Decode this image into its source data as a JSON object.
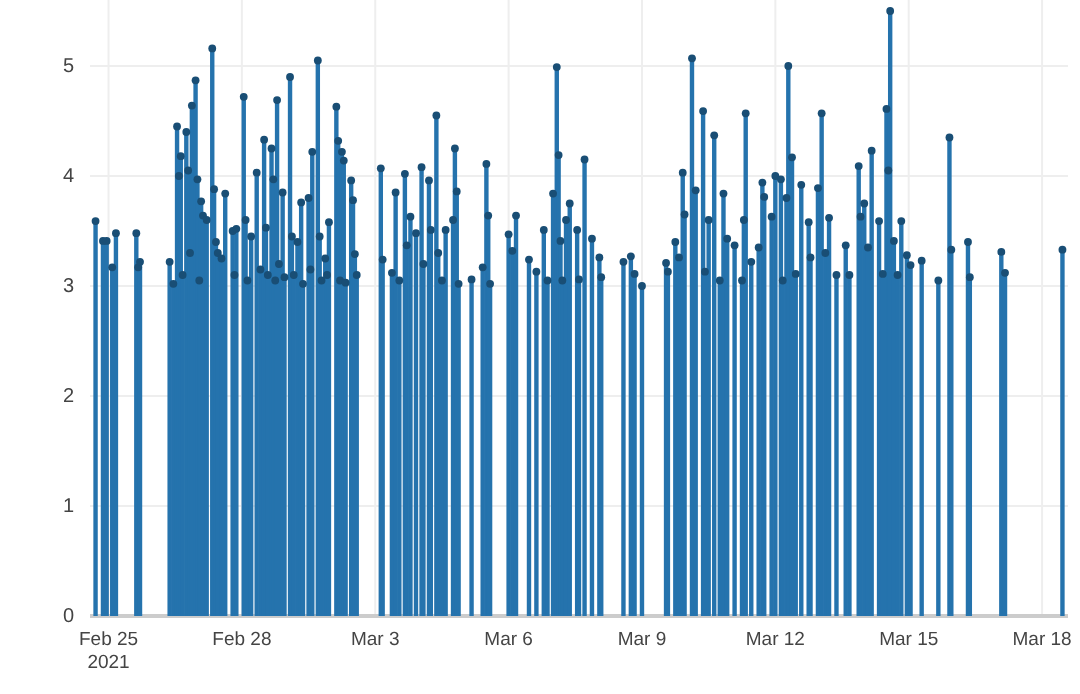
{
  "chart_data": {
    "type": "lollipop",
    "marker": "circle",
    "grid": true,
    "xlim": [
      "2021-02-24T14:00",
      "2021-03-18T14:00"
    ],
    "xticks": [
      {
        "value": "2021-02-25",
        "label": "Feb 25\n2021"
      },
      {
        "value": "2021-02-28",
        "label": "Feb 28"
      },
      {
        "value": "2021-03-03",
        "label": "Mar 3"
      },
      {
        "value": "2021-03-06",
        "label": "Mar 6"
      },
      {
        "value": "2021-03-09",
        "label": "Mar 9"
      },
      {
        "value": "2021-03-12",
        "label": "Mar 12"
      },
      {
        "value": "2021-03-15",
        "label": "Mar 15"
      },
      {
        "value": "2021-03-18",
        "label": "Mar 18"
      }
    ],
    "ylim": [
      0,
      5.6
    ],
    "yticks": [
      0,
      1,
      2,
      3,
      4,
      5
    ],
    "series": [
      {
        "color": "#194e75",
        "x": [
          "2021-02-24T17:00",
          "2021-02-24T21:00",
          "2021-02-24T23:00",
          "2021-02-25T02:00",
          "2021-02-25T04:00",
          "2021-02-25T15:00",
          "2021-02-25T16:00",
          "2021-02-25T17:00",
          "2021-02-26T09:00",
          "2021-02-26T11:00",
          "2021-02-26T13:00",
          "2021-02-26T14:00",
          "2021-02-26T15:00",
          "2021-02-26T16:00",
          "2021-02-26T18:00",
          "2021-02-26T19:00",
          "2021-02-26T20:00",
          "2021-02-26T21:00",
          "2021-02-26T23:00",
          "2021-02-27T00:00",
          "2021-02-27T01:00",
          "2021-02-27T02:00",
          "2021-02-27T03:00",
          "2021-02-27T05:00",
          "2021-02-27T08:00",
          "2021-02-27T09:00",
          "2021-02-27T10:00",
          "2021-02-27T11:00",
          "2021-02-27T13:00",
          "2021-02-27T15:00",
          "2021-02-27T19:00",
          "2021-02-27T20:00",
          "2021-02-27T21:00",
          "2021-02-28T01:00",
          "2021-02-28T02:00",
          "2021-02-28T03:00",
          "2021-02-28T05:00",
          "2021-02-28T08:00",
          "2021-02-28T10:00",
          "2021-02-28T12:00",
          "2021-02-28T13:00",
          "2021-02-28T14:00",
          "2021-02-28T16:00",
          "2021-02-28T17:00",
          "2021-02-28T18:00",
          "2021-02-28T19:00",
          "2021-02-28T20:00",
          "2021-02-28T22:00",
          "2021-02-28T23:00",
          "2021-03-01T02:00",
          "2021-03-01T03:00",
          "2021-03-01T04:00",
          "2021-03-01T06:00",
          "2021-03-01T08:00",
          "2021-03-01T09:00",
          "2021-03-01T12:00",
          "2021-03-01T13:00",
          "2021-03-01T14:00",
          "2021-03-01T17:00",
          "2021-03-01T18:00",
          "2021-03-01T19:00",
          "2021-03-01T21:00",
          "2021-03-01T22:00",
          "2021-03-01T23:00",
          "2021-03-02T03:00",
          "2021-03-02T04:00",
          "2021-03-02T05:00",
          "2021-03-02T06:00",
          "2021-03-02T07:00",
          "2021-03-02T08:00",
          "2021-03-02T11:00",
          "2021-03-02T12:00",
          "2021-03-02T13:00",
          "2021-03-02T14:00",
          "2021-03-03T03:00",
          "2021-03-03T04:00",
          "2021-03-03T09:00",
          "2021-03-03T11:00",
          "2021-03-03T13:00",
          "2021-03-03T16:00",
          "2021-03-03T17:00",
          "2021-03-03T19:00",
          "2021-03-03T22:00",
          "2021-03-04T01:00",
          "2021-03-04T02:00",
          "2021-03-04T05:00",
          "2021-03-04T06:00",
          "2021-03-04T09:00",
          "2021-03-04T10:00",
          "2021-03-04T12:00",
          "2021-03-04T14:00",
          "2021-03-04T18:00",
          "2021-03-04T19:00",
          "2021-03-04T20:00",
          "2021-03-04T21:00",
          "2021-03-05T04:00",
          "2021-03-05T10:00",
          "2021-03-05T12:00",
          "2021-03-05T13:00",
          "2021-03-05T14:00",
          "2021-03-06T00:00",
          "2021-03-06T02:00",
          "2021-03-06T04:00",
          "2021-03-06T11:00",
          "2021-03-06T15:00",
          "2021-03-06T19:00",
          "2021-03-06T21:00",
          "2021-03-07T00:00",
          "2021-03-07T02:00",
          "2021-03-07T03:00",
          "2021-03-07T04:00",
          "2021-03-07T05:00",
          "2021-03-07T07:00",
          "2021-03-07T09:00",
          "2021-03-07T13:00",
          "2021-03-07T14:00",
          "2021-03-07T17:00",
          "2021-03-07T21:00",
          "2021-03-08T01:00",
          "2021-03-08T02:00",
          "2021-03-08T14:00",
          "2021-03-08T18:00",
          "2021-03-08T20:00",
          "2021-03-09T00:00",
          "2021-03-09T13:00",
          "2021-03-09T14:00",
          "2021-03-09T18:00",
          "2021-03-09T20:00",
          "2021-03-09T22:00",
          "2021-03-09T23:00",
          "2021-03-10T03:00",
          "2021-03-10T05:00",
          "2021-03-10T09:00",
          "2021-03-10T10:00",
          "2021-03-10T12:00",
          "2021-03-10T15:00",
          "2021-03-10T18:00",
          "2021-03-10T20:00",
          "2021-03-10T22:00",
          "2021-03-11T02:00",
          "2021-03-11T06:00",
          "2021-03-11T07:00",
          "2021-03-11T08:00",
          "2021-03-11T11:00",
          "2021-03-11T15:00",
          "2021-03-11T17:00",
          "2021-03-11T18:00",
          "2021-03-11T22:00",
          "2021-03-12T00:00",
          "2021-03-12T03:00",
          "2021-03-12T04:00",
          "2021-03-12T06:00",
          "2021-03-12T07:00",
          "2021-03-12T09:00",
          "2021-03-12T11:00",
          "2021-03-12T14:00",
          "2021-03-12T18:00",
          "2021-03-12T19:00",
          "2021-03-12T23:00",
          "2021-03-13T01:00",
          "2021-03-13T03:00",
          "2021-03-13T05:00",
          "2021-03-13T09:00",
          "2021-03-13T14:00",
          "2021-03-13T16:00",
          "2021-03-13T21:00",
          "2021-03-13T22:00",
          "2021-03-14T00:00",
          "2021-03-14T02:00",
          "2021-03-14T04:00",
          "2021-03-14T08:00",
          "2021-03-14T10:00",
          "2021-03-14T12:00",
          "2021-03-14T13:00",
          "2021-03-14T14:00",
          "2021-03-14T16:00",
          "2021-03-14T18:00",
          "2021-03-14T20:00",
          "2021-03-14T23:00",
          "2021-03-15T01:00",
          "2021-03-15T07:00",
          "2021-03-15T16:00",
          "2021-03-15T22:00",
          "2021-03-15T23:00",
          "2021-03-16T08:00",
          "2021-03-16T09:00",
          "2021-03-17T02:00",
          "2021-03-17T04:00",
          "2021-03-18T11:00"
        ],
        "values": [
          3.59,
          3.41,
          3.41,
          3.17,
          3.48,
          3.48,
          3.17,
          3.22,
          3.22,
          3.02,
          4.45,
          4.0,
          4.18,
          3.1,
          4.4,
          4.05,
          3.3,
          4.64,
          4.87,
          3.97,
          3.05,
          3.77,
          3.64,
          3.6,
          5.16,
          3.88,
          3.4,
          3.3,
          3.25,
          3.84,
          3.5,
          3.1,
          3.52,
          4.72,
          3.6,
          3.05,
          3.45,
          4.03,
          3.15,
          4.33,
          3.53,
          3.1,
          4.25,
          3.97,
          3.05,
          4.69,
          3.2,
          3.85,
          3.08,
          4.9,
          3.45,
          3.1,
          3.4,
          3.76,
          3.02,
          3.8,
          3.15,
          4.22,
          5.05,
          3.45,
          3.05,
          3.25,
          3.1,
          3.58,
          4.63,
          4.32,
          3.05,
          4.22,
          4.14,
          3.03,
          3.96,
          3.78,
          3.29,
          3.1,
          4.07,
          3.24,
          3.12,
          3.85,
          3.05,
          4.02,
          3.37,
          3.63,
          3.48,
          4.08,
          3.2,
          3.96,
          3.51,
          4.55,
          3.3,
          3.05,
          3.51,
          3.6,
          4.25,
          3.86,
          3.02,
          3.06,
          3.17,
          4.11,
          3.64,
          3.02,
          3.47,
          3.32,
          3.64,
          3.24,
          3.13,
          3.51,
          3.05,
          3.84,
          4.99,
          4.19,
          3.41,
          3.05,
          3.6,
          3.75,
          3.51,
          3.06,
          4.15,
          3.43,
          3.26,
          3.08,
          3.22,
          3.27,
          3.11,
          3.0,
          3.21,
          3.13,
          3.4,
          3.26,
          4.03,
          3.65,
          5.07,
          3.87,
          4.59,
          3.13,
          3.6,
          4.37,
          3.05,
          3.84,
          3.43,
          3.37,
          3.05,
          3.6,
          4.57,
          3.22,
          3.35,
          3.94,
          3.81,
          3.63,
          4.0,
          3.97,
          3.05,
          3.8,
          5.0,
          4.17,
          3.11,
          3.92,
          3.58,
          3.26,
          3.89,
          4.57,
          3.3,
          3.62,
          3.1,
          3.37,
          3.1,
          4.09,
          3.63,
          3.75,
          3.35,
          4.23,
          3.59,
          3.11,
          4.61,
          4.05,
          5.5,
          3.41,
          3.1,
          3.59,
          3.28,
          3.19,
          3.23,
          3.05,
          4.35,
          3.33,
          3.4,
          3.08,
          3.31,
          3.12,
          3.33
        ]
      }
    ]
  }
}
